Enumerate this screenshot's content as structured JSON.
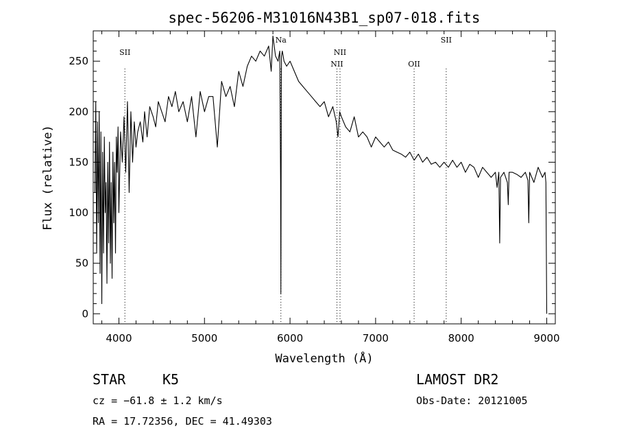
{
  "chart_data": {
    "type": "line",
    "title": "spec-56206-M31016N43B1_sp07-018.fits",
    "xlabel": "Wavelength (Å)",
    "ylabel": "Flux (relative)",
    "xlim": [
      3700,
      9100
    ],
    "ylim": [
      -10,
      280
    ],
    "xticks": [
      4000,
      5000,
      6000,
      7000,
      8000,
      9000
    ],
    "yticks": [
      0,
      50,
      100,
      150,
      200,
      250
    ],
    "grid": false,
    "lines": [
      {
        "label": "SII",
        "wavelength": 4070
      },
      {
        "label": "Na",
        "wavelength": 5893
      },
      {
        "label": "NII",
        "wavelength": 6548
      },
      {
        "label": "NII",
        "wavelength": 6584
      },
      {
        "label": "OII",
        "wavelength": 7450
      },
      {
        "label": "SII",
        "wavelength": 7825
      }
    ],
    "series": [
      {
        "x": [
          3720,
          3730,
          3740,
          3750,
          3760,
          3770,
          3780,
          3790,
          3800,
          3810,
          3820,
          3830,
          3840,
          3850,
          3860,
          3870,
          3880,
          3890,
          3900,
          3910,
          3920,
          3930,
          3940,
          3950,
          3960,
          3970,
          3980,
          3990,
          4000,
          4020,
          4040,
          4060,
          4080,
          4100,
          4120,
          4140,
          4160,
          4180,
          4200,
          4220,
          4250,
          4280,
          4300,
          4330,
          4360,
          4400,
          4430,
          4460,
          4500,
          4540,
          4580,
          4620,
          4660,
          4700,
          4750,
          4800,
          4850,
          4900,
          4950,
          5000,
          5050,
          5100,
          5150,
          5200,
          5250,
          5300,
          5350,
          5400,
          5450,
          5500,
          5550,
          5600,
          5650,
          5700,
          5750,
          5780,
          5800,
          5830,
          5860,
          5880,
          5890,
          5893,
          5896,
          5900,
          5910,
          5930,
          5960,
          6000,
          6050,
          6100,
          6150,
          6200,
          6250,
          6300,
          6350,
          6400,
          6450,
          6500,
          6540,
          6560,
          6580,
          6600,
          6650,
          6700,
          6750,
          6800,
          6850,
          6900,
          6950,
          7000,
          7050,
          7100,
          7150,
          7200,
          7250,
          7300,
          7350,
          7400,
          7450,
          7500,
          7550,
          7600,
          7650,
          7700,
          7750,
          7800,
          7850,
          7900,
          7950,
          8000,
          8050,
          8100,
          8150,
          8200,
          8250,
          8300,
          8350,
          8400,
          8420,
          8440,
          8450,
          8460,
          8500,
          8540,
          8550,
          8560,
          8600,
          8650,
          8700,
          8750,
          8780,
          8790,
          8800,
          8850,
          8900,
          8950,
          8980,
          8990,
          9000
        ],
        "y": [
          120,
          210,
          60,
          190,
          90,
          200,
          40,
          180,
          10,
          160,
          60,
          175,
          100,
          130,
          30,
          150,
          70,
          170,
          50,
          130,
          35,
          160,
          90,
          150,
          60,
          175,
          140,
          185,
          100,
          180,
          150,
          195,
          140,
          210,
          120,
          200,
          150,
          190,
          165,
          180,
          190,
          170,
          200,
          175,
          205,
          195,
          185,
          210,
          200,
          190,
          215,
          205,
          220,
          200,
          210,
          190,
          215,
          175,
          220,
          200,
          215,
          215,
          165,
          230,
          215,
          225,
          205,
          240,
          225,
          245,
          255,
          250,
          260,
          255,
          265,
          240,
          275,
          255,
          250,
          260,
          130,
          20,
          140,
          255,
          260,
          250,
          245,
          250,
          240,
          230,
          225,
          220,
          215,
          210,
          205,
          210,
          195,
          205,
          190,
          175,
          200,
          195,
          185,
          180,
          195,
          175,
          180,
          175,
          165,
          175,
          170,
          165,
          170,
          162,
          160,
          158,
          155,
          160,
          152,
          158,
          150,
          155,
          148,
          150,
          145,
          150,
          145,
          152,
          145,
          150,
          140,
          148,
          145,
          135,
          145,
          140,
          135,
          140,
          125,
          140,
          70,
          135,
          140,
          130,
          108,
          140,
          140,
          138,
          135,
          140,
          132,
          90,
          140,
          130,
          145,
          135,
          140,
          130,
          0
        ]
      }
    ],
    "footer": {
      "object_class": "STAR",
      "subclass": "K5",
      "survey": "LAMOST DR2",
      "cz": "cz = −61.8 ± 1.2 km/s",
      "obs_date": "Obs-Date: 20121005",
      "coords": "RA =  17.72356, DEC =  41.49303"
    }
  }
}
